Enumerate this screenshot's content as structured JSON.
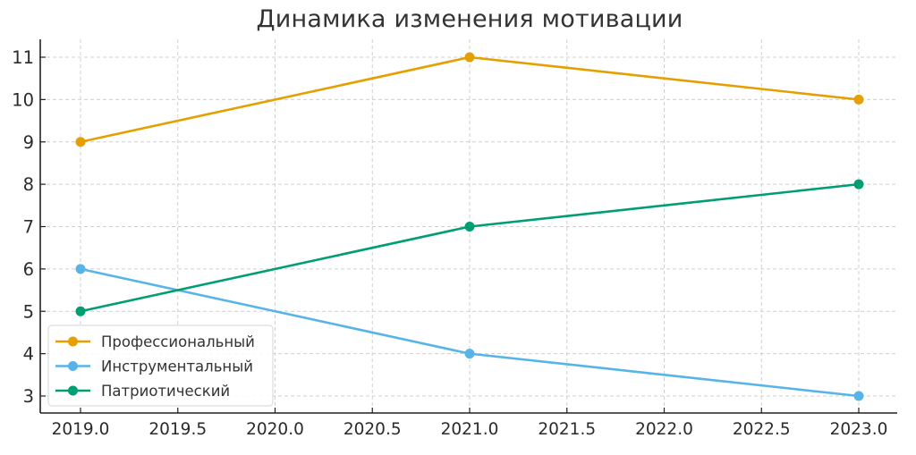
{
  "chart_data": {
    "type": "line",
    "title": "Динамика изменения мотивации",
    "xlabel": "",
    "ylabel": "",
    "x": [
      2019,
      2021,
      2023
    ],
    "series": [
      {
        "name": "Профессиональный",
        "color": "#E69F00",
        "values": [
          9,
          11,
          10
        ]
      },
      {
        "name": "Инструментальный",
        "color": "#56B4E9",
        "values": [
          6,
          4,
          3
        ]
      },
      {
        "name": "Патриотический",
        "color": "#009E73",
        "values": [
          5,
          7,
          8
        ]
      }
    ],
    "x_ticks": [
      "2019.0",
      "2019.5",
      "2020.0",
      "2020.5",
      "2021.0",
      "2021.5",
      "2022.0",
      "2022.5",
      "2023.0"
    ],
    "x_tick_values": [
      2019.0,
      2019.5,
      2020.0,
      2020.5,
      2021.0,
      2021.5,
      2022.0,
      2022.5,
      2023.0
    ],
    "y_ticks": [
      "3",
      "4",
      "5",
      "6",
      "7",
      "8",
      "9",
      "10",
      "11"
    ],
    "y_tick_values": [
      3,
      4,
      5,
      6,
      7,
      8,
      9,
      10,
      11
    ],
    "xlim": [
      2018.8,
      2023.2
    ],
    "ylim": [
      2.6,
      11.4
    ],
    "grid": true,
    "legend_position": "lower left"
  }
}
